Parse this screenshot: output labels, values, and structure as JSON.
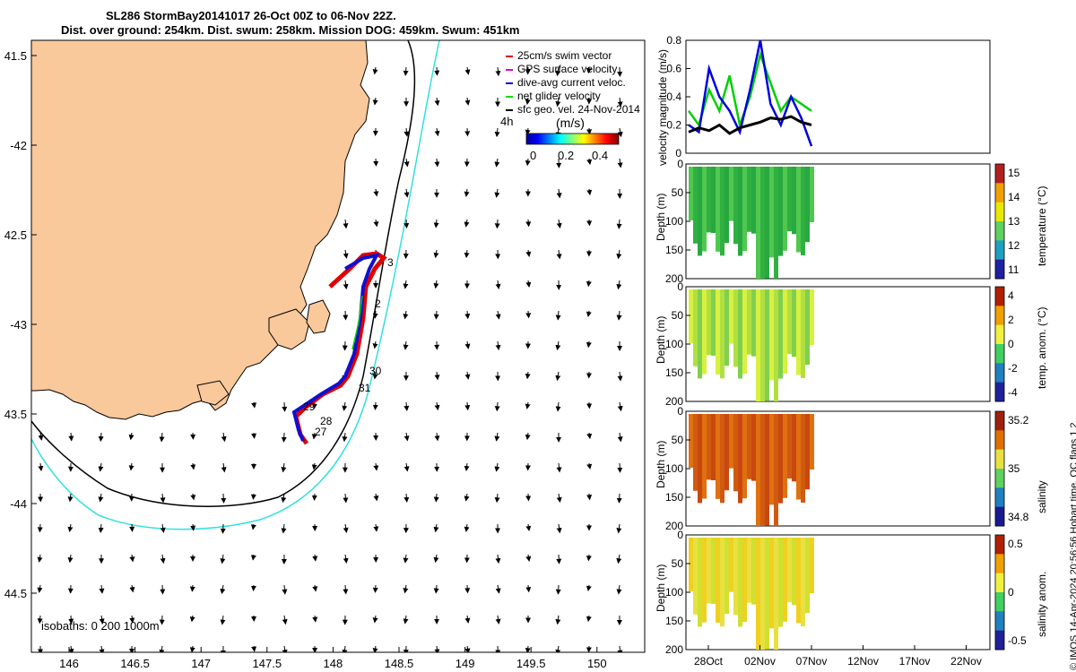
{
  "header": {
    "title_line1": "SL286 StormBay20141017 26-Oct 00Z to 06-Nov 22Z.",
    "title_line2": "Dist. over ground: 254km. Dist. swum: 258km. Mission DOG: 459km. Swum: 451km"
  },
  "map": {
    "lon_ticks": [
      "146",
      "146.5",
      "147",
      "147.5",
      "148",
      "148.5",
      "149",
      "149.5",
      "150"
    ],
    "lat_ticks": [
      "41.5",
      "-42",
      "42.5",
      "-43",
      "43.5",
      "-44",
      "44.5"
    ],
    "legend": [
      {
        "label": "25cm/s swim vector",
        "color": "#e00000"
      },
      {
        "label": "GPS surface velocity",
        "color": "#e000e0"
      },
      {
        "label": "dive-avg current veloc.",
        "color": "#0000e0"
      },
      {
        "label": "net glider velocity",
        "color": "#00e000"
      },
      {
        "label": "sfc geo. vel. 24-Nov-2014",
        "color": "#000000"
      }
    ],
    "colorbar_prefix": "4h",
    "colorbar_label": "(m/s)",
    "colorbar_ticks": [
      "0",
      "0.2",
      "0.4"
    ],
    "day_labels": [
      "3",
      "2",
      "30",
      "31",
      "29",
      "28",
      "27"
    ],
    "isobath_text": "isobaths: 0   200  1000m",
    "colors": {
      "land": "#f9c89b",
      "isobath_200": "#000000",
      "isobath_1000": "#33e0e0",
      "track_swim": "#e00000",
      "track_current": "#1010d0"
    }
  },
  "chart_data": [
    {
      "type": "line",
      "title": "",
      "ylabel": "velocity magnitude (m/s)",
      "ylim": [
        0,
        0.8
      ],
      "yticks": [
        "0.8",
        "0.6",
        "0.4",
        "0.2",
        "0"
      ],
      "series": [
        {
          "name": "net glider velocity",
          "color": "#00d000",
          "x": [
            0,
            1,
            2,
            3,
            4,
            5,
            6,
            7,
            8,
            9,
            10,
            11,
            12
          ],
          "values": [
            0.3,
            0.2,
            0.45,
            0.3,
            0.55,
            0.2,
            0.4,
            0.7,
            0.5,
            0.3,
            0.4,
            0.35,
            0.3
          ]
        },
        {
          "name": "dive-avg current veloc.",
          "color": "#0000e0",
          "x": [
            0,
            1,
            2,
            3,
            4,
            5,
            6,
            7,
            8,
            9,
            10,
            11,
            12
          ],
          "values": [
            0.2,
            0.15,
            0.6,
            0.4,
            0.3,
            0.15,
            0.45,
            0.8,
            0.35,
            0.2,
            0.4,
            0.25,
            0.05
          ]
        },
        {
          "name": "sfc geo. vel.",
          "color": "#000000",
          "x": [
            0,
            1,
            2,
            3,
            4,
            5,
            6,
            7,
            8,
            9,
            10,
            11,
            12
          ],
          "values": [
            0.15,
            0.18,
            0.16,
            0.2,
            0.14,
            0.18,
            0.2,
            0.22,
            0.25,
            0.24,
            0.26,
            0.22,
            0.2
          ]
        }
      ]
    },
    {
      "type": "heatmap",
      "ylabel": "Depth (m)",
      "yticks": [
        "0",
        "50",
        "100",
        "150",
        "200"
      ],
      "colorbar_label": "temperature (°C)",
      "colorbar_ticks": [
        "15",
        "14",
        "13",
        "12",
        "11"
      ]
    },
    {
      "type": "heatmap",
      "ylabel": "Depth (m)",
      "yticks": [
        "0",
        "50",
        "100",
        "150",
        "200"
      ],
      "colorbar_label": "temp. anom. (°C)",
      "colorbar_ticks": [
        "4",
        "2",
        "0",
        "-2",
        "-4"
      ]
    },
    {
      "type": "heatmap",
      "ylabel": "Depth (m)",
      "yticks": [
        "0",
        "50",
        "100",
        "150",
        "200"
      ],
      "colorbar_label": "salinity",
      "colorbar_ticks": [
        "35.2",
        "35",
        "34.8"
      ]
    },
    {
      "type": "heatmap",
      "ylabel": "Depth (m)",
      "yticks": [
        "0",
        "50",
        "100",
        "150",
        "200"
      ],
      "colorbar_label": "salinity anom.",
      "colorbar_ticks": [
        "0.5",
        "0",
        "-0.5"
      ],
      "xlabel_ticks": [
        "28Oct",
        "02Nov",
        "07Nov",
        "12Nov",
        "17Nov",
        "22Nov"
      ]
    }
  ],
  "side_label": {
    "qc_text": "QC flags 1  2",
    "copyright": "© IMOS 14-Apr-2024 20:56:56 Hobart time."
  }
}
